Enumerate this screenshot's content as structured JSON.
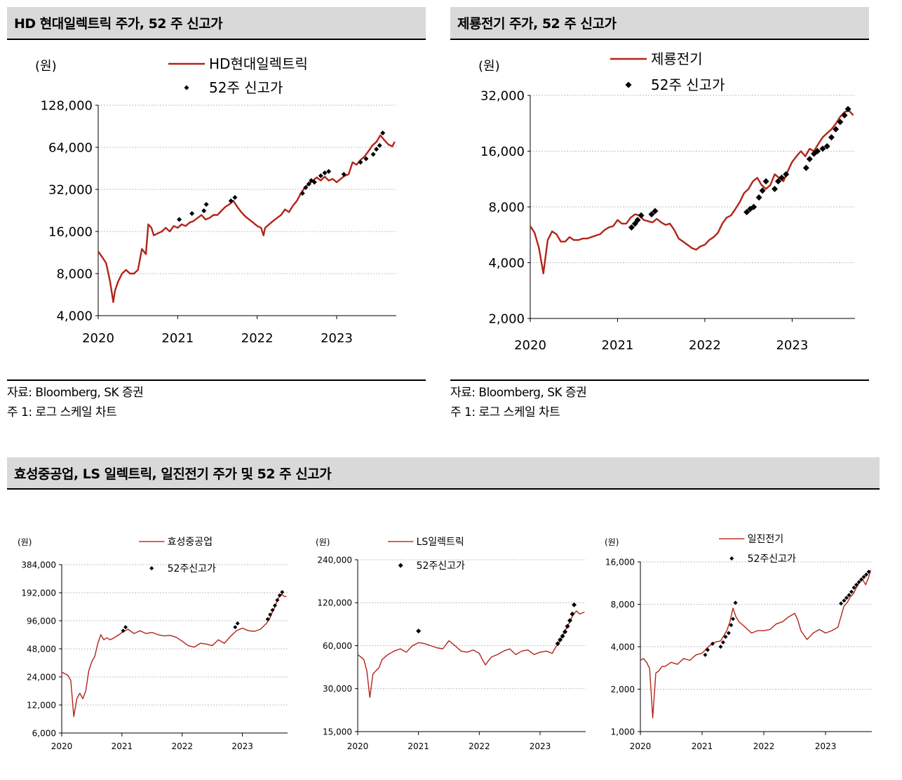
{
  "panels": {
    "hd": {
      "title": "HD 현대일렉트릭 주가, 52 주 신고가",
      "source": "자료: Bloomberg, SK 증권",
      "note": "주 1: 로그 스케일 차트"
    },
    "jeryong": {
      "title": "제룡전기 주가, 52 주 신고가",
      "source": "자료: Bloomberg, SK 증권",
      "note": "주 1: 로그 스케일 차트"
    },
    "bottom": {
      "title": "효성중공업, LS 일렉트릭, 일진전기 주가 및 52 주 신고가"
    }
  },
  "colors": {
    "line": "#b22418",
    "marker": "#000000",
    "grid": "#bfbfbf",
    "header": "#d9d9d9"
  },
  "chart_data": [
    {
      "id": "hd",
      "type": "line",
      "scale": "log",
      "ylabel": "(원)",
      "yticks": [
        4000,
        8000,
        16000,
        32000,
        64000,
        128000
      ],
      "ytick_labels": [
        "4,000",
        "8,000",
        "16,000",
        "32,000",
        "64,000",
        "128,000"
      ],
      "xticks": [
        2020,
        2021,
        2022,
        2023
      ],
      "xlim": [
        2020.0,
        2023.75
      ],
      "series": [
        {
          "name": "HD현대일렉트릭",
          "x": [
            2020.0,
            2020.05,
            2020.1,
            2020.15,
            2020.19,
            2020.21,
            2020.25,
            2020.3,
            2020.35,
            2020.4,
            2020.45,
            2020.5,
            2020.55,
            2020.6,
            2020.63,
            2020.67,
            2020.7,
            2020.75,
            2020.8,
            2020.85,
            2020.9,
            2020.95,
            2021.0,
            2021.05,
            2021.1,
            2021.15,
            2021.2,
            2021.25,
            2021.3,
            2021.35,
            2021.4,
            2021.45,
            2021.5,
            2021.55,
            2021.6,
            2021.65,
            2021.7,
            2021.75,
            2021.8,
            2021.85,
            2021.9,
            2021.95,
            2022.0,
            2022.05,
            2022.08,
            2022.1,
            2022.15,
            2022.2,
            2022.25,
            2022.3,
            2022.35,
            2022.4,
            2022.45,
            2022.5,
            2022.55,
            2022.6,
            2022.65,
            2022.7,
            2022.75,
            2022.8,
            2022.85,
            2022.9,
            2022.95,
            2023.0,
            2023.05,
            2023.1,
            2023.15,
            2023.2,
            2023.25,
            2023.3,
            2023.35,
            2023.4,
            2023.45,
            2023.5,
            2023.55,
            2023.6,
            2023.65,
            2023.7,
            2023.73
          ],
          "values": [
            11500,
            10500,
            9500,
            7000,
            5000,
            6000,
            7000,
            8000,
            8500,
            8000,
            8000,
            8500,
            12000,
            11000,
            18000,
            17000,
            15000,
            15500,
            16000,
            17000,
            16000,
            17500,
            17000,
            18000,
            17500,
            18500,
            19000,
            20000,
            21000,
            19500,
            20000,
            21000,
            21000,
            22500,
            24000,
            25000,
            26500,
            24000,
            22000,
            20500,
            19500,
            18500,
            17500,
            17000,
            15000,
            17000,
            18000,
            19000,
            20000,
            21000,
            23000,
            22000,
            24500,
            26500,
            30000,
            33000,
            35000,
            37000,
            39000,
            37000,
            39500,
            37000,
            38000,
            36000,
            38000,
            40000,
            41000,
            50000,
            48000,
            52000,
            55000,
            60000,
            66000,
            70000,
            78000,
            72000,
            67000,
            65000,
            70000
          ]
        },
        {
          "name": "52주 신고가",
          "x": [
            2021.02,
            2021.18,
            2021.33,
            2021.36,
            2021.67,
            2021.72,
            2022.57,
            2022.61,
            2022.65,
            2022.68,
            2022.72,
            2022.8,
            2022.85,
            2022.9,
            2023.09,
            2023.3,
            2023.37,
            2023.46,
            2023.5,
            2023.54,
            2023.58
          ],
          "values": [
            19500,
            21500,
            22500,
            25000,
            26500,
            28000,
            30000,
            33000,
            35000,
            37000,
            36000,
            40000,
            42000,
            43000,
            41000,
            50000,
            53000,
            57000,
            62000,
            66000,
            81000
          ]
        }
      ]
    },
    {
      "id": "jeryong",
      "type": "line",
      "scale": "log",
      "ylabel": "(원)",
      "yticks": [
        2000,
        4000,
        8000,
        16000,
        32000
      ],
      "ytick_labels": [
        "2,000",
        "4,000",
        "8,000",
        "16,000",
        "32,000"
      ],
      "xticks": [
        2020,
        2021,
        2022,
        2023
      ],
      "xlim": [
        2020.0,
        2023.72
      ],
      "series": [
        {
          "name": "제룡전기",
          "x": [
            2020.0,
            2020.05,
            2020.1,
            2020.15,
            2020.2,
            2020.25,
            2020.3,
            2020.35,
            2020.4,
            2020.45,
            2020.5,
            2020.55,
            2020.6,
            2020.65,
            2020.7,
            2020.75,
            2020.8,
            2020.85,
            2020.9,
            2020.95,
            2021.0,
            2021.05,
            2021.1,
            2021.15,
            2021.2,
            2021.25,
            2021.3,
            2021.35,
            2021.4,
            2021.45,
            2021.5,
            2021.55,
            2021.6,
            2021.65,
            2021.7,
            2021.75,
            2021.8,
            2021.85,
            2021.9,
            2021.95,
            2022.0,
            2022.05,
            2022.1,
            2022.15,
            2022.2,
            2022.25,
            2022.3,
            2022.35,
            2022.4,
            2022.45,
            2022.5,
            2022.55,
            2022.6,
            2022.65,
            2022.7,
            2022.75,
            2022.8,
            2022.85,
            2022.9,
            2022.95,
            2023.0,
            2023.05,
            2023.1,
            2023.15,
            2023.2,
            2023.25,
            2023.3,
            2023.35,
            2023.4,
            2023.45,
            2023.5,
            2023.55,
            2023.6,
            2023.65,
            2023.7
          ],
          "values": [
            6300,
            5800,
            4800,
            3500,
            5300,
            5900,
            5700,
            5200,
            5200,
            5500,
            5300,
            5300,
            5400,
            5400,
            5500,
            5600,
            5700,
            6000,
            6200,
            6300,
            6800,
            6500,
            6500,
            7000,
            7300,
            7200,
            6800,
            6700,
            6600,
            6900,
            6600,
            6400,
            6500,
            6000,
            5400,
            5200,
            5000,
            4800,
            4700,
            4900,
            5000,
            5300,
            5500,
            5800,
            6500,
            7000,
            7200,
            7800,
            8500,
            9500,
            10000,
            11000,
            11500,
            10500,
            10000,
            10500,
            12000,
            11500,
            11000,
            12500,
            14000,
            15000,
            16000,
            15000,
            16500,
            16000,
            17500,
            19000,
            20000,
            21000,
            22500,
            24500,
            26000,
            26500,
            25000
          ]
        },
        {
          "name": "52주 신고가",
          "x": [
            2021.16,
            2021.2,
            2021.23,
            2021.27,
            2021.39,
            2021.43,
            2022.48,
            2022.52,
            2022.56,
            2022.62,
            2022.66,
            2022.7,
            2022.8,
            2022.84,
            2022.88,
            2022.93,
            2023.16,
            2023.2,
            2023.25,
            2023.29,
            2023.35,
            2023.4,
            2023.45,
            2023.5,
            2023.55,
            2023.6,
            2023.64
          ],
          "values": [
            6200,
            6500,
            6800,
            7200,
            7300,
            7600,
            7500,
            7800,
            8000,
            9000,
            9800,
            11000,
            10000,
            11000,
            11500,
            12000,
            13000,
            14500,
            15500,
            16000,
            16500,
            17000,
            19000,
            21000,
            23000,
            25000,
            27000
          ]
        }
      ]
    },
    {
      "id": "hyosung",
      "type": "line",
      "scale": "log",
      "ylabel": "(원)",
      "yticks": [
        6000,
        12000,
        24000,
        48000,
        96000,
        192000,
        384000
      ],
      "ytick_labels": [
        "6,000",
        "12,000",
        "24,000",
        "48,000",
        "96,000",
        "192,000",
        "384,000"
      ],
      "xticks": [
        2020,
        2021,
        2022,
        2023
      ],
      "xlim": [
        2020.0,
        2023.75
      ],
      "series": [
        {
          "name": "효성중공업",
          "x": [
            2020.0,
            2020.05,
            2020.1,
            2020.15,
            2020.2,
            2020.25,
            2020.3,
            2020.35,
            2020.4,
            2020.45,
            2020.5,
            2020.55,
            2020.6,
            2020.65,
            2020.7,
            2020.75,
            2020.8,
            2020.85,
            2020.9,
            2020.95,
            2021.0,
            2021.1,
            2021.2,
            2021.3,
            2021.4,
            2021.5,
            2021.6,
            2021.7,
            2021.8,
            2021.9,
            2022.0,
            2022.1,
            2022.2,
            2022.3,
            2022.4,
            2022.5,
            2022.6,
            2022.7,
            2022.8,
            2022.9,
            2023.0,
            2023.1,
            2023.2,
            2023.3,
            2023.4,
            2023.45,
            2023.5,
            2023.55,
            2023.6,
            2023.65,
            2023.7,
            2023.73
          ],
          "values": [
            27000,
            26000,
            25000,
            22000,
            9000,
            14000,
            16000,
            14000,
            17000,
            28000,
            35000,
            40000,
            55000,
            68000,
            60000,
            63000,
            60000,
            62000,
            65000,
            68000,
            72000,
            78000,
            70000,
            75000,
            70000,
            72000,
            68000,
            66000,
            67000,
            64000,
            58000,
            52000,
            50000,
            55000,
            54000,
            52000,
            60000,
            55000,
            65000,
            75000,
            80000,
            75000,
            74000,
            78000,
            90000,
            100000,
            120000,
            140000,
            170000,
            185000,
            175000,
            175000
          ]
        },
        {
          "name": "52주신고가",
          "x": [
            2021.02,
            2021.06,
            2022.88,
            2022.92,
            2023.42,
            2023.46,
            2023.5,
            2023.54,
            2023.58,
            2023.62,
            2023.66
          ],
          "values": [
            75000,
            82000,
            82000,
            90000,
            100000,
            112000,
            125000,
            140000,
            160000,
            180000,
            195000
          ]
        }
      ]
    },
    {
      "id": "ls",
      "type": "line",
      "scale": "log",
      "ylabel": "(원)",
      "yticks": [
        15000,
        30000,
        60000,
        120000,
        240000
      ],
      "ytick_labels": [
        "15,000",
        "30,000",
        "60,000",
        "120,000",
        "240,000"
      ],
      "xticks": [
        2020,
        2021,
        2022,
        2023
      ],
      "xlim": [
        2020.0,
        2023.75
      ],
      "series": [
        {
          "name": "LS일렉트릭",
          "x": [
            2020.0,
            2020.05,
            2020.1,
            2020.15,
            2020.2,
            2020.25,
            2020.3,
            2020.35,
            2020.4,
            2020.5,
            2020.6,
            2020.7,
            2020.8,
            2020.9,
            2021.0,
            2021.1,
            2021.2,
            2021.3,
            2021.4,
            2021.5,
            2021.6,
            2021.7,
            2021.8,
            2021.9,
            2022.0,
            2022.05,
            2022.1,
            2022.15,
            2022.2,
            2022.3,
            2022.4,
            2022.5,
            2022.6,
            2022.7,
            2022.8,
            2022.9,
            2023.0,
            2023.1,
            2023.2,
            2023.25,
            2023.3,
            2023.35,
            2023.4,
            2023.45,
            2023.5,
            2023.55,
            2023.6,
            2023.65,
            2023.7,
            2023.73
          ],
          "values": [
            52000,
            50000,
            48000,
            40000,
            26000,
            38000,
            40000,
            42000,
            48000,
            52000,
            55000,
            57000,
            54000,
            60000,
            63000,
            62000,
            60000,
            58000,
            57000,
            65000,
            60000,
            55000,
            54000,
            56000,
            53000,
            48000,
            44000,
            47000,
            50000,
            52000,
            55000,
            57000,
            52000,
            55000,
            56000,
            52000,
            54000,
            55000,
            53000,
            58000,
            62000,
            68000,
            75000,
            82000,
            90000,
            100000,
            105000,
            100000,
            102000,
            103000
          ]
        },
        {
          "name": "52주신고가",
          "x": [
            2021.0,
            2023.29,
            2023.33,
            2023.37,
            2023.41,
            2023.45,
            2023.49,
            2023.53,
            2023.56
          ],
          "values": [
            76000,
            62000,
            66000,
            70000,
            75000,
            82000,
            90000,
            100000,
            116000
          ]
        }
      ]
    },
    {
      "id": "iljin",
      "type": "line",
      "scale": "log",
      "ylabel": "(원)",
      "yticks": [
        1000,
        2000,
        4000,
        8000,
        16000
      ],
      "ytick_labels": [
        "1,000",
        "2,000",
        "4,000",
        "8,000",
        "16,000"
      ],
      "xticks": [
        2020,
        2021,
        2022,
        2023
      ],
      "xlim": [
        2020.0,
        2023.75
      ],
      "series": [
        {
          "name": "일진전기",
          "x": [
            2020.0,
            2020.05,
            2020.1,
            2020.15,
            2020.2,
            2020.25,
            2020.3,
            2020.35,
            2020.4,
            2020.5,
            2020.6,
            2020.7,
            2020.8,
            2020.9,
            2021.0,
            2021.1,
            2021.2,
            2021.3,
            2021.4,
            2021.45,
            2021.5,
            2021.55,
            2021.6,
            2021.7,
            2021.8,
            2021.9,
            2022.0,
            2022.1,
            2022.2,
            2022.3,
            2022.4,
            2022.5,
            2022.55,
            2022.6,
            2022.7,
            2022.8,
            2022.9,
            2023.0,
            2023.1,
            2023.2,
            2023.3,
            2023.35,
            2023.4,
            2023.45,
            2023.5,
            2023.55,
            2023.6,
            2023.65,
            2023.7,
            2023.73
          ],
          "values": [
            3200,
            3300,
            3100,
            2800,
            1250,
            2600,
            2700,
            2900,
            2900,
            3100,
            3000,
            3300,
            3200,
            3500,
            3600,
            4000,
            4300,
            4400,
            5200,
            6000,
            7500,
            6500,
            6000,
            5500,
            5000,
            5200,
            5200,
            5300,
            5800,
            6000,
            6500,
            6900,
            6200,
            5200,
            4500,
            5000,
            5300,
            5000,
            5200,
            5500,
            7800,
            8200,
            9000,
            9500,
            10500,
            11500,
            12000,
            11000,
            12500,
            14000
          ]
        },
        {
          "name": "52주신고가",
          "x": [
            2021.05,
            2021.09,
            2021.17,
            2021.3,
            2021.34,
            2021.38,
            2021.43,
            2021.47,
            2021.5,
            2021.54,
            2023.25,
            2023.3,
            2023.34,
            2023.38,
            2023.42,
            2023.46,
            2023.5,
            2023.54,
            2023.58,
            2023.62,
            2023.66,
            2023.7
          ],
          "values": [
            3500,
            3800,
            4200,
            4000,
            4300,
            4700,
            5000,
            5700,
            6300,
            8200,
            8100,
            8500,
            8900,
            9300,
            9800,
            10500,
            11000,
            11500,
            12000,
            12500,
            13000,
            13600
          ]
        }
      ]
    }
  ]
}
